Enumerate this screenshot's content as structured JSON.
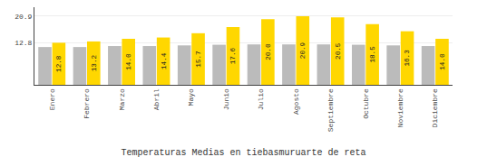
{
  "chart_data": {
    "type": "bar",
    "title": "Temperaturas Medias en tiebasmuruarte de reta",
    "categories": [
      "Enero",
      "Febrero",
      "Marzo",
      "Abril",
      "Mayo",
      "Junio",
      "Julio",
      "Agosto",
      "Septiembre",
      "Octubre",
      "Noviembre",
      "Diciembre"
    ],
    "series": [
      {
        "color": "#BBBBBB",
        "values": [
          11.5,
          11.5,
          11.8,
          11.8,
          12.0,
          12.2,
          12.3,
          12.3,
          12.3,
          12.2,
          12.0,
          11.8
        ]
      },
      {
        "color": "#FFD700",
        "values": [
          12.8,
          13.2,
          14.0,
          14.4,
          15.7,
          17.6,
          20.0,
          20.9,
          20.5,
          18.5,
          16.3,
          14.0
        ],
        "data_labels": true,
        "value_labels": [
          "12.8",
          "13.2",
          "14.0",
          "14.4",
          "15.7",
          "17.6",
          "20.0",
          "20.9",
          "20.5",
          "18.5",
          "16.3",
          "14.0"
        ]
      }
    ],
    "ylim": [
      0,
      23.617
    ],
    "yticks": [
      12.8,
      20.9
    ],
    "y2lim": [
      0,
      23.617
    ],
    "y2ticks": [
      12.8,
      20.9
    ],
    "grid": true
  }
}
